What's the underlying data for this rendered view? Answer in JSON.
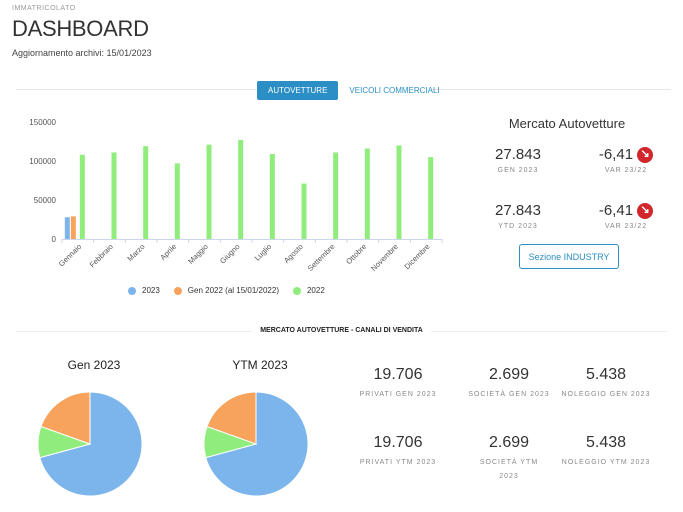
{
  "header": {
    "kicker": "IMMATRICOLATO",
    "title": "DASHBOARD",
    "update_label": "Aggiornamento archivi: 15/01/2023"
  },
  "tabs": [
    {
      "label": "AUTOVETTURE",
      "active": true
    },
    {
      "label": "VEICOLI COMMERCIALI",
      "active": false
    }
  ],
  "colors": {
    "series_2023": "#7cb5ec",
    "series_gen2022": "#f7a35c",
    "series_2022": "#90ed7d",
    "accent": "#2b8fc5",
    "down_arrow": "#d0262c"
  },
  "chart_data": {
    "type": "bar",
    "categories": [
      "Gennaio",
      "Febbraio",
      "Marzo",
      "Aprile",
      "Maggio",
      "Giugno",
      "Luglio",
      "Agosto",
      "Settembre",
      "Ottobre",
      "Novembre",
      "Dicembre"
    ],
    "series": [
      {
        "name": "2023",
        "values": [
          27843,
          null,
          null,
          null,
          null,
          null,
          null,
          null,
          null,
          null,
          null,
          null
        ]
      },
      {
        "name": "Gen 2022 (al 15/01/2022)",
        "values": [
          29000,
          null,
          null,
          null,
          null,
          null,
          null,
          null,
          null,
          null,
          null,
          null
        ]
      },
      {
        "name": "2022",
        "values": [
          108000,
          111000,
          119000,
          97000,
          121000,
          127000,
          109000,
          71000,
          111000,
          116000,
          120000,
          105000
        ]
      }
    ],
    "yticks": [
      "0",
      "50000",
      "100000",
      "150000"
    ],
    "ylim": [
      0,
      150000
    ],
    "legend_position": "bottom",
    "grid": false
  },
  "market": {
    "title": "Mercato Autovetture",
    "gen_value": "27.843",
    "gen_label": "GEN 2023",
    "gen_var": "-6,41",
    "gen_var_label": "VAR 23/22",
    "ytd_value": "27.843",
    "ytd_label": "YTD 2023",
    "ytd_var": "-6,41",
    "ytd_var_label": "VAR 23/22",
    "button_label": "Sezione INDUSTRY",
    "arrow_icon": "down-right-arrow-icon"
  },
  "sales_channels": {
    "section_title": "MERCATO AUTOVETTURE - CANALI DI VENDITA",
    "pies": [
      {
        "title": "Gen 2023",
        "slices": [
          {
            "label": "Privati",
            "value": 19706
          },
          {
            "label": "Società",
            "value": 2699
          },
          {
            "label": "Noleggio",
            "value": 5438
          }
        ]
      },
      {
        "title": "YTM 2023",
        "slices": [
          {
            "label": "Privati",
            "value": 19706
          },
          {
            "label": "Società",
            "value": 2699
          },
          {
            "label": "Noleggio",
            "value": 5438
          }
        ]
      }
    ],
    "stats_gen": [
      {
        "value": "19.706",
        "label": "PRIVATI GEN 2023"
      },
      {
        "value": "2.699",
        "label": "SOCIETÀ GEN 2023"
      },
      {
        "value": "5.438",
        "label": "NOLEGGIO GEN 2023"
      }
    ],
    "stats_ytm": [
      {
        "value": "19.706",
        "label": "PRIVATI YTM 2023"
      },
      {
        "value": "2.699",
        "label": "SOCIETÀ YTM 2023"
      },
      {
        "value": "5.438",
        "label": "NOLEGGIO YTM 2023"
      }
    ]
  }
}
